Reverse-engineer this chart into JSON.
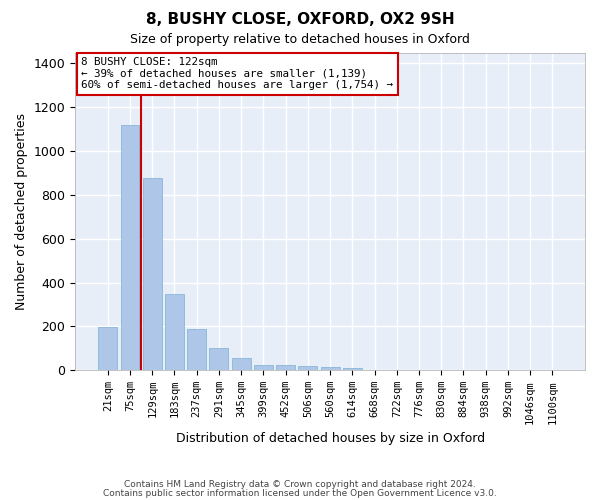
{
  "title": "8, BUSHY CLOSE, OXFORD, OX2 9SH",
  "subtitle": "Size of property relative to detached houses in Oxford",
  "xlabel": "Distribution of detached houses by size in Oxford",
  "ylabel": "Number of detached properties",
  "bar_color": "#aec6e8",
  "bar_edge_color": "#7bafd4",
  "background_color": "#e8eef8",
  "grid_color": "#ffffff",
  "annotation_text": "8 BUSHY CLOSE: 122sqm\n← 39% of detached houses are smaller (1,139)\n60% of semi-detached houses are larger (1,754) →",
  "annotation_box_color": "#cc0000",
  "property_line_color": "#cc0000",
  "bin_labels": [
    "21sqm",
    "75sqm",
    "129sqm",
    "183sqm",
    "237sqm",
    "291sqm",
    "345sqm",
    "399sqm",
    "452sqm",
    "506sqm",
    "560sqm",
    "614sqm",
    "668sqm",
    "722sqm",
    "776sqm",
    "830sqm",
    "884sqm",
    "938sqm",
    "992sqm",
    "1046sqm",
    "1100sqm"
  ],
  "bar_heights": [
    195,
    1120,
    875,
    350,
    190,
    100,
    55,
    25,
    25,
    20,
    15,
    10,
    0,
    0,
    0,
    0,
    0,
    0,
    0,
    0,
    0
  ],
  "ylim": [
    0,
    1450
  ],
  "yticks": [
    0,
    200,
    400,
    600,
    800,
    1000,
    1200,
    1400
  ],
  "footer_line1": "Contains HM Land Registry data © Crown copyright and database right 2024.",
  "footer_line2": "Contains public sector information licensed under the Open Government Licence v3.0."
}
